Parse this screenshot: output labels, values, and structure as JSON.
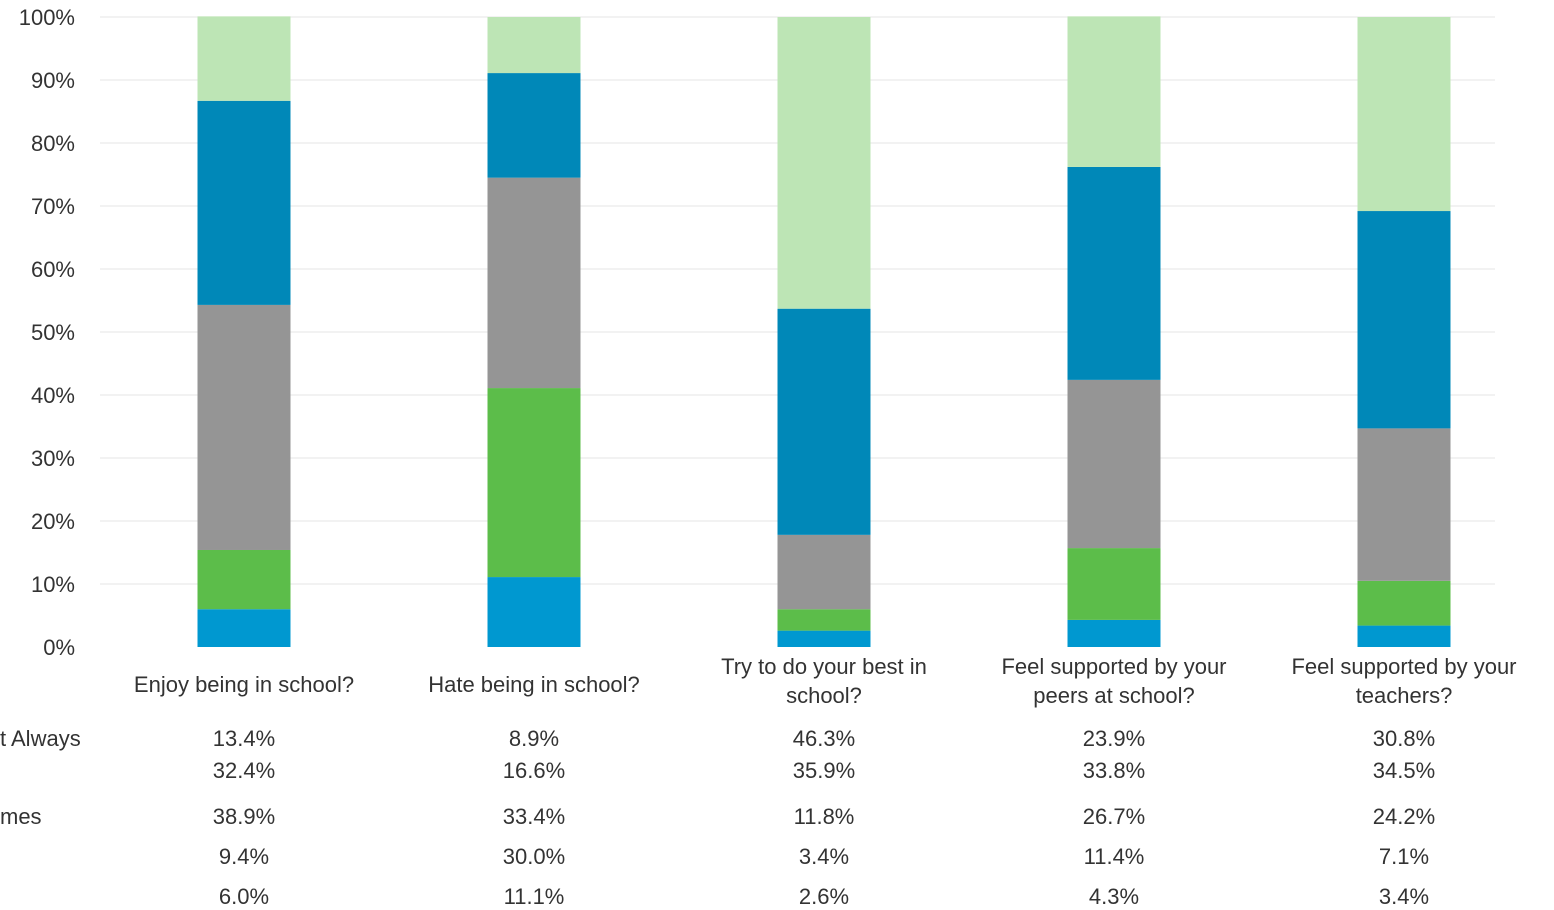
{
  "chart_data": {
    "type": "bar",
    "stacked": true,
    "percent": true,
    "ylim": [
      0,
      100
    ],
    "y_ticks": [
      "0%",
      "10%",
      "20%",
      "30%",
      "40%",
      "50%",
      "60%",
      "70%",
      "80%",
      "90%",
      "100%"
    ],
    "grid": true,
    "categories": [
      [
        "Enjoy being in school?"
      ],
      [
        "Hate being in school?"
      ],
      [
        "Try to do your best in",
        "school?"
      ],
      [
        "Feel supported by your",
        "peers at school?"
      ],
      [
        "Feel supported by your",
        "teachers?"
      ]
    ],
    "series": [
      {
        "name": "",
        "color": "#0098d0",
        "values": [
          6.0,
          11.1,
          2.6,
          4.3,
          3.4
        ],
        "labels": [
          "6.0%",
          "11.1%",
          "2.6%",
          "4.3%",
          "3.4%"
        ]
      },
      {
        "name": "",
        "color": "#5cbd4a",
        "values": [
          9.4,
          30.0,
          3.4,
          11.4,
          7.1
        ],
        "labels": [
          "9.4%",
          "30.0%",
          "3.4%",
          "11.4%",
          "7.1%"
        ]
      },
      {
        "name": "mes",
        "color": "#959595",
        "values": [
          38.9,
          33.4,
          11.8,
          26.7,
          24.2
        ],
        "labels": [
          "38.9%",
          "33.4%",
          "11.8%",
          "26.7%",
          "24.2%"
        ]
      },
      {
        "name": "",
        "color": "#0088b8",
        "values": [
          32.4,
          16.6,
          35.9,
          33.8,
          34.5
        ],
        "labels": [
          "32.4%",
          "16.6%",
          "35.9%",
          "33.8%",
          "34.5%"
        ]
      },
      {
        "name": "t Always",
        "color": "#bde5b5",
        "values": [
          13.4,
          8.9,
          46.3,
          23.9,
          30.8
        ],
        "labels": [
          "13.4%",
          "8.9%",
          "46.3%",
          "23.9%",
          "30.8%"
        ]
      }
    ]
  }
}
